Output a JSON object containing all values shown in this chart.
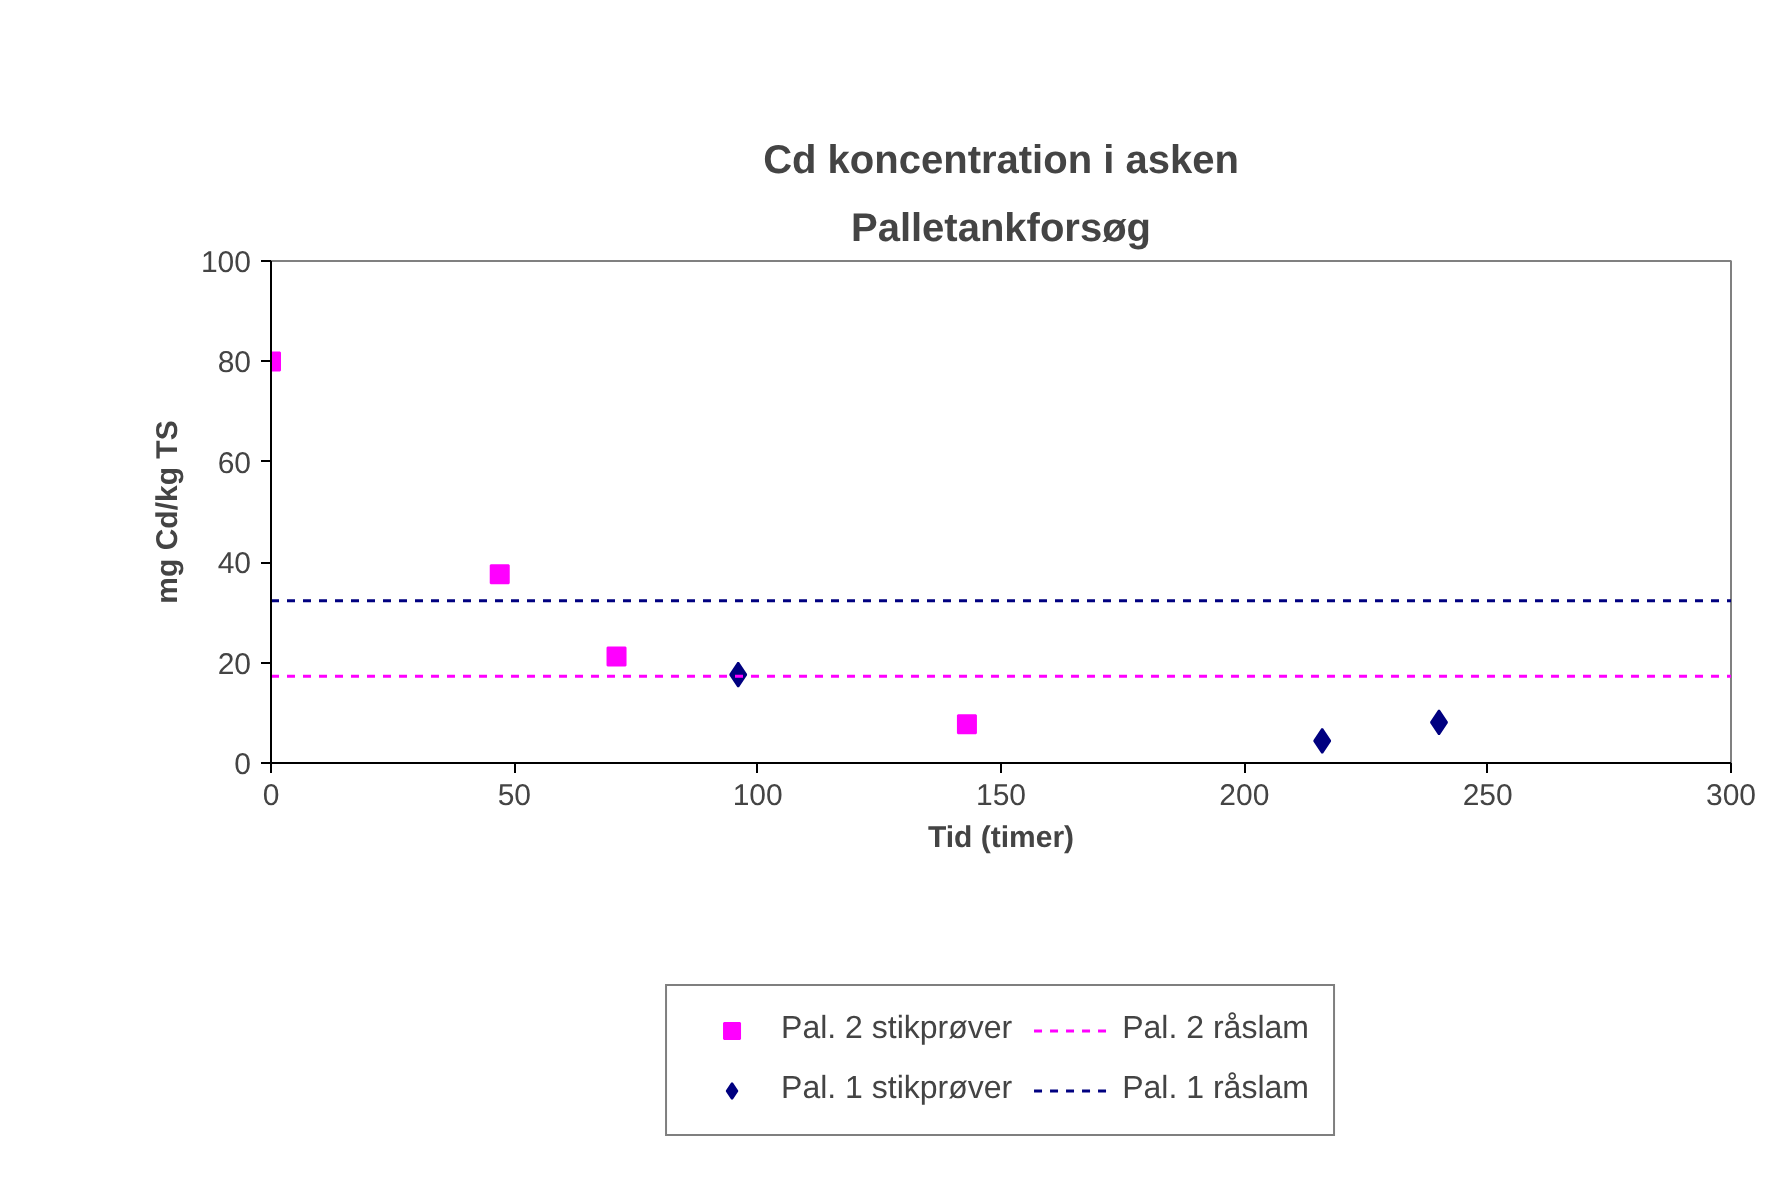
{
  "chart_data": {
    "type": "scatter",
    "title": "Cd koncentration i asken",
    "subtitle": "Palletankforsøg",
    "xlabel": "Tid (timer)",
    "ylabel": "mg Cd/kg TS",
    "xlim": [
      0,
      300
    ],
    "xticks": [
      0,
      50,
      100,
      150,
      200,
      250,
      300
    ],
    "ylim": [
      0,
      100
    ],
    "yticks": [
      0,
      20,
      40,
      60,
      80,
      100
    ],
    "series": [
      {
        "name": "Pal. 2 stikprøver",
        "color": "#ff00ff",
        "marker": "square",
        "x": [
          0,
          47,
          71,
          143
        ],
        "values": [
          80,
          37.6,
          21.2,
          7.7
        ]
      },
      {
        "name": "Pal. 1 stikprøver",
        "color": "#000080",
        "marker": "diamond",
        "x": [
          96,
          216,
          240
        ],
        "values": [
          17.6,
          4.4,
          8.1
        ]
      }
    ],
    "ref_lines": [
      {
        "axis": "y",
        "value": 17.3,
        "label": "Pal. 2 råslam",
        "color": "#ff00ff",
        "line_style": "dashed"
      },
      {
        "axis": "y",
        "value": 32.3,
        "label": "Pal. 1 råslam",
        "color": "#000080",
        "line_style": "dashed"
      }
    ],
    "grid": false,
    "legend": "bottom"
  }
}
